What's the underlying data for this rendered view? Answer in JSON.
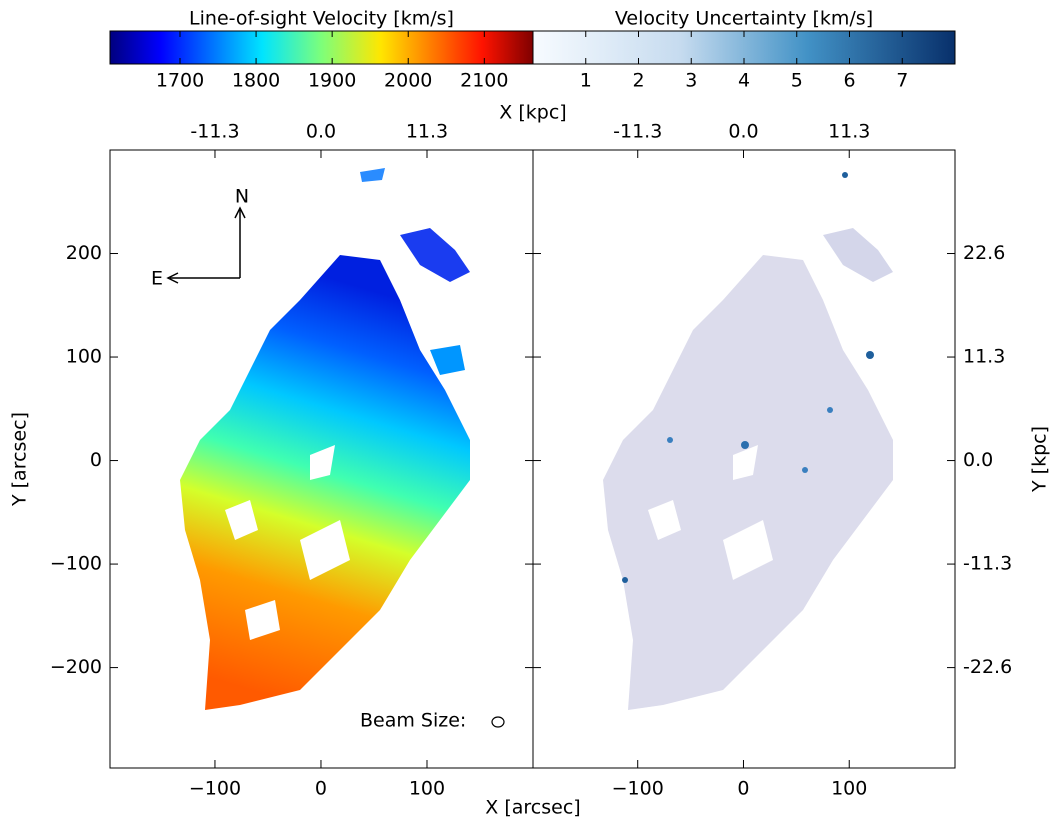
{
  "chart_data": [
    {
      "type": "image",
      "colorbar_label": "Line-of-sight Velocity [km/s]",
      "colormap": "jet",
      "clim": [
        1608,
        2164
      ],
      "cticks": [
        1700,
        1800,
        1900,
        2000,
        2100
      ],
      "xlabel": "X [arcsec]",
      "x2label": "X [kpc]",
      "ylabel": "Y [arcsec]",
      "xlim": [
        -199,
        200
      ],
      "xticks": [
        {
          "value": -100,
          "label": "−100"
        },
        0,
        100
      ],
      "x2lim": [
        -22.49,
        22.6
      ],
      "x2ticks": [
        -11.3,
        {
          "value": 0,
          "label": "0.0"
        },
        11.3
      ],
      "ylim": [
        -297,
        300
      ],
      "yticks": [
        {
          "value": -200,
          "label": "−200"
        },
        {
          "value": -100,
          "label": "−100"
        },
        0,
        100,
        200
      ],
      "annotations": {
        "north": "N",
        "east": "E",
        "beam": "Beam Size:"
      }
    },
    {
      "type": "image",
      "colorbar_label": "Velocity Uncertainty [km/s]",
      "colormap": "Blues",
      "clim": [
        0,
        8
      ],
      "cticks": [
        1,
        2,
        3,
        4,
        5,
        6,
        7
      ],
      "xlim": [
        -199,
        200
      ],
      "xticks": [
        {
          "value": -100,
          "label": "−100"
        },
        0,
        100
      ],
      "x2lim": [
        -22.49,
        22.6
      ],
      "x2ticks": [
        -11.3,
        {
          "value": 0,
          "label": "0.0"
        },
        11.3
      ],
      "y2label": "Y [kpc]",
      "y2lim": [
        -33.56,
        33.9
      ],
      "y2ticks": [
        -22.6,
        -11.3,
        {
          "value": 0,
          "label": "0.0"
        },
        11.3,
        22.6
      ]
    }
  ]
}
